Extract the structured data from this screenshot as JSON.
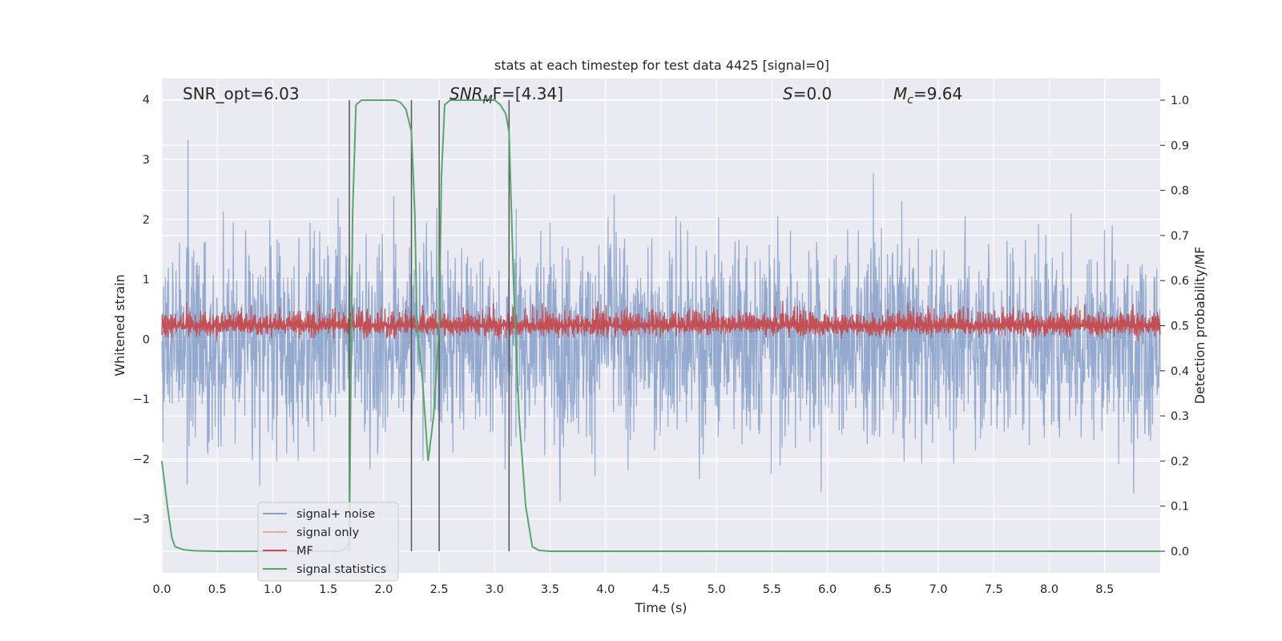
{
  "chart_data": {
    "type": "line",
    "title": "stats at each timestep for test data 4425 [signal=0]",
    "xlabel": "Time (s)",
    "ylabel": "Whitened strain",
    "ylabel_right": "Detection probability/MF",
    "xlim": [
      0,
      9.0
    ],
    "ylim": [
      -3.9,
      4.35
    ],
    "ylim_right": [
      -0.048,
      1.048
    ],
    "x_ticks": [
      0.0,
      0.5,
      1.0,
      1.5,
      2.0,
      2.5,
      3.0,
      3.5,
      4.0,
      4.5,
      5.0,
      5.5,
      6.0,
      6.5,
      7.0,
      7.5,
      8.0,
      8.5
    ],
    "x_tick_labels": [
      "0.0",
      "0.5",
      "1.0",
      "1.5",
      "2.0",
      "2.5",
      "3.0",
      "3.5",
      "4.0",
      "4.5",
      "5.0",
      "5.5",
      "6.0",
      "6.5",
      "7.0",
      "7.5",
      "8.0",
      "8.5"
    ],
    "y_ticks": [
      -3,
      -2,
      -1,
      0,
      1,
      2,
      3,
      4
    ],
    "y_tick_labels": [
      "−3",
      "−2",
      "−1",
      "0",
      "1",
      "2",
      "3",
      "4"
    ],
    "y_right_ticks": [
      0.0,
      0.1,
      0.2,
      0.3,
      0.4,
      0.5,
      0.6,
      0.7,
      0.8,
      0.9,
      1.0
    ],
    "y_right_tick_labels": [
      "0.0",
      "0.1",
      "0.2",
      "0.3",
      "0.4",
      "0.5",
      "0.6",
      "0.7",
      "0.8",
      "0.9",
      "1.0"
    ],
    "annotations": {
      "snr_opt": "SNR_opt=6.03",
      "snr_mf_prefix": "SNR",
      "snr_mf_sub": "M",
      "snr_mf_suffix": "F=[4.34]",
      "s_prefix": "S",
      "s_suffix": "=0.0",
      "mc_prefix": "M",
      "mc_sub": "c",
      "mc_suffix": "=9.64"
    },
    "vertical_markers": [
      1.69,
      2.25,
      2.5,
      3.13
    ],
    "series": [
      {
        "name": "signal+ noise",
        "color": "#4c72b0",
        "axis": "left",
        "style": "noise",
        "amplitude_range": [
          -3.5,
          3.6
        ],
        "note": "dense noise trace over full time range"
      },
      {
        "name": "signal only",
        "color": "#dd8452",
        "axis": "left",
        "style": "flat",
        "values_note": "no visible signal (signal=0)"
      },
      {
        "name": "MF",
        "color": "#c44e52",
        "axis": "right",
        "style": "band",
        "baseline": 0.5,
        "band_range": [
          0.465,
          0.6
        ]
      },
      {
        "name": "signal statistics",
        "color": "#55a868",
        "axis": "right",
        "style": "line",
        "x": [
          0.0,
          0.05,
          0.09,
          0.12,
          0.2,
          0.3,
          0.5,
          1.0,
          1.5,
          1.6,
          1.65,
          1.69,
          1.7,
          1.72,
          1.75,
          1.8,
          2.0,
          2.1,
          2.15,
          2.2,
          2.25,
          2.28,
          2.3,
          2.35,
          2.4,
          2.45,
          2.5,
          2.52,
          2.55,
          2.6,
          2.8,
          3.0,
          3.05,
          3.1,
          3.13,
          3.17,
          3.22,
          3.28,
          3.34,
          3.4,
          3.5,
          4.0,
          5.0,
          6.0,
          7.0,
          8.0,
          9.0
        ],
        "values": [
          0.2,
          0.1,
          0.03,
          0.01,
          0.003,
          0.001,
          0.0,
          0.0,
          0.0,
          0.0,
          0.005,
          0.02,
          0.3,
          0.75,
          0.99,
          1.0,
          1.0,
          1.0,
          0.995,
          0.98,
          0.93,
          0.75,
          0.5,
          0.38,
          0.2,
          0.3,
          0.5,
          0.83,
          0.99,
          1.0,
          1.0,
          1.0,
          0.99,
          0.97,
          0.93,
          0.6,
          0.3,
          0.1,
          0.01,
          0.002,
          0.0,
          0.0,
          0.0,
          0.0,
          0.0,
          0.0,
          0.0
        ]
      }
    ],
    "legend": {
      "placement": "lower-left",
      "entries": [
        "signal+ noise",
        "signal only",
        "MF",
        "signal statistics"
      ]
    }
  }
}
